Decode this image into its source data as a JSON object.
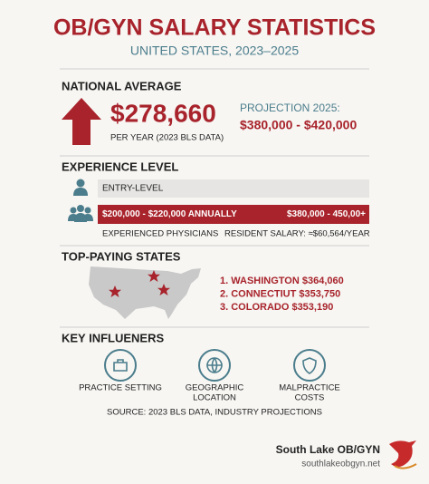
{
  "header": {
    "title": "OB/GYN SALARY STATISTICS",
    "subtitle": "UNITED STATES, 2023–2025"
  },
  "national_average": {
    "heading": "NATIONAL AVERAGE",
    "amount": "$278,660",
    "note": "PER YEAR (2023 BLS DATA)",
    "projection_label": "PROJECTION 2025:",
    "projection_range": "$380,000 - $420,000"
  },
  "experience_level": {
    "heading": "EXPERIENCE LEVEL",
    "entry_label": "ENTRY-LEVEL",
    "experienced_range": "$200,000 - $220,000 ANNUALLY",
    "upper_range": "$380,000 - 450,00+",
    "experienced_caption": "EXPERIENCED PHYSICIANS",
    "resident_caption": "RESIDENT SALARY: ≈$60,564/YEAR"
  },
  "top_paying_states": {
    "heading": "TOP-PAYING STATES",
    "items": [
      "1. WASHINGTON $364,060",
      "2. CONNECTIUT $353,750",
      "3. COLORADO $353,190"
    ]
  },
  "key_influencers": {
    "heading": "KEY INFLUENERS",
    "items": [
      [
        "PRACTICE SETTING"
      ],
      [
        "GEOGRAPHIC",
        "LOCATION"
      ],
      [
        "MALPRACTICE",
        "COSTS"
      ]
    ]
  },
  "source": "SOURCE: 2023 BLS DATA, INDUSTRY PROJECTIONS",
  "footer": {
    "name": "South Lake OB/GYN",
    "url": "southlakeobgyn.net"
  }
}
